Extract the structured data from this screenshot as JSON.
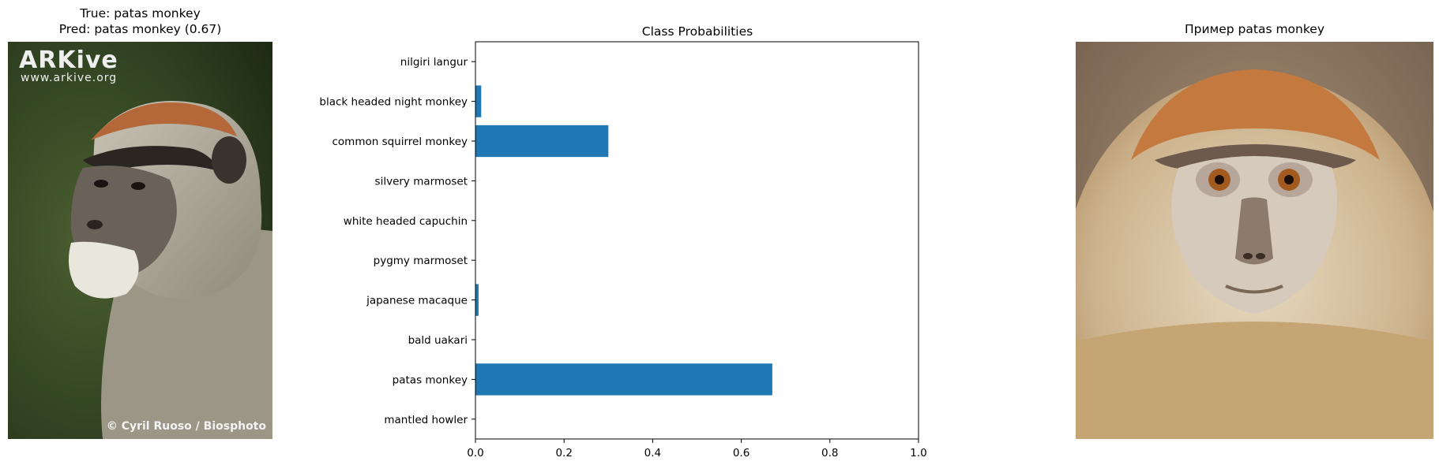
{
  "left_panel": {
    "title_line1": "True: patas monkey",
    "title_line2": "Pred: patas monkey (0.67)",
    "image_subject": "patas monkey photo",
    "watermark_logo": "ARKive",
    "watermark_url": "www.arkive.org",
    "photo_credit": "© Cyril Ruoso / Biosphoto"
  },
  "right_panel": {
    "title": "Пример patas monkey",
    "image_subject": "patas monkey face close-up"
  },
  "chart_data": {
    "type": "bar",
    "orientation": "horizontal",
    "title": "Class Probabilities",
    "xlabel": "",
    "ylabel": "",
    "categories": [
      "mantled howler",
      "patas monkey",
      "bald uakari",
      "japanese macaque",
      "pygmy marmoset",
      "white headed capuchin",
      "silvery marmoset",
      "common squirrel monkey",
      "black headed night monkey",
      "nilgiri langur"
    ],
    "values": [
      0.0,
      0.67,
      0.0,
      0.007,
      0.0,
      0.0,
      0.0,
      0.3,
      0.013,
      0.0
    ],
    "xlim": [
      0,
      1.0
    ],
    "xticks": [
      "0.0",
      "0.2",
      "0.4",
      "0.6",
      "0.8",
      "1.0"
    ],
    "bar_color": "#1f77b4",
    "grid": false,
    "legend": "none"
  }
}
